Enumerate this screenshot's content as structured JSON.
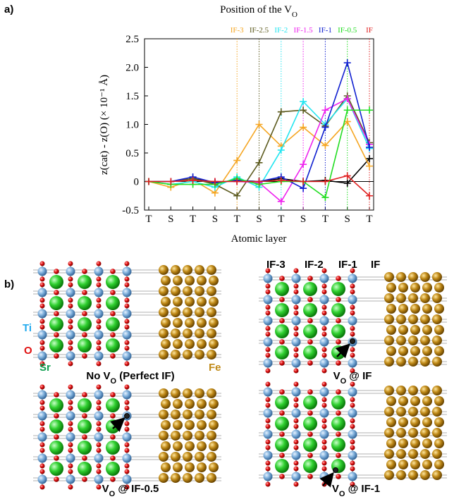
{
  "panel_a_label": "a)",
  "panel_b_label": "b)",
  "chart_data": {
    "type": "line",
    "title": "Position of the V",
    "title_subscript": "O",
    "y_label": "z(cat) - z(O) (× 10⁻¹ Å)",
    "x_label": "Atomic layer",
    "categories": [
      "T",
      "S",
      "T",
      "S",
      "T",
      "S",
      "T",
      "S",
      "T",
      "S",
      "T"
    ],
    "ylim": [
      -0.5,
      2.5
    ],
    "yticks": [
      2.5,
      {
        "value": 2,
        "label": "2.0"
      },
      1.5,
      {
        "value": 1,
        "label": "1.0"
      },
      0.5,
      0,
      -0.5
    ],
    "zero_line": true,
    "series": [
      {
        "color": "#000000",
        "values": [
          0,
          0,
          0.05,
          -0.02,
          0.02,
          0,
          0.05,
          0,
          0.02,
          -0.03,
          0.4
        ]
      },
      {
        "name": "IF-3",
        "color": "#f5a623",
        "vline": 4,
        "values": [
          0,
          -0.1,
          0.03,
          -0.2,
          0.37,
          1.0,
          0.62,
          0.95,
          0.63,
          1.05,
          0.27
        ]
      },
      {
        "name": "IF-2.5",
        "color": "#5c5a1e",
        "vline": 5,
        "values": [
          0,
          0,
          0.05,
          -0.05,
          -0.25,
          0.33,
          1.22,
          1.25,
          0.97,
          1.5,
          0.68
        ]
      },
      {
        "name": "IF-2",
        "color": "#22e5f0",
        "vline": 6,
        "values": [
          0,
          -0.05,
          0,
          -0.1,
          0.08,
          -0.1,
          0.55,
          1.4,
          1.0,
          1.45,
          0.58
        ]
      },
      {
        "name": "IF-1.5",
        "color": "#ee22ee",
        "vline": 7,
        "values": [
          0,
          0,
          0.02,
          0,
          0,
          -0.02,
          -0.35,
          0.3,
          1.25,
          1.45,
          0.65
        ]
      },
      {
        "name": "IF-1",
        "color": "#1020d0",
        "vline": 8,
        "values": [
          0,
          0,
          0.08,
          -0.02,
          0.02,
          0,
          0.08,
          -0.12,
          0.95,
          2.08,
          0.6
        ]
      },
      {
        "name": "IF-0.5",
        "color": "#22dd22",
        "vline": 9,
        "values": [
          0,
          -0.05,
          -0.05,
          -0.05,
          0.05,
          -0.05,
          0,
          0,
          -0.28,
          1.25,
          1.25
        ]
      },
      {
        "name": "IF",
        "color": "#e02020",
        "vline": 10,
        "values": [
          0,
          0,
          0.02,
          0,
          0,
          0,
          0.02,
          0,
          0,
          0.1,
          -0.25
        ]
      }
    ]
  },
  "ions": {
    "ti": "Ti",
    "o": "O",
    "sr": "Sr",
    "fe": "Fe"
  },
  "columns": [
    "IF-3",
    "IF-2",
    "IF-1",
    "IF"
  ],
  "captions": [
    {
      "pre": "No V",
      "sub": "O",
      "post": " (Perfect IF)"
    },
    {
      "pre": "V",
      "sub": "O",
      "post": " @ IF"
    },
    {
      "pre": "V",
      "sub": "O",
      "post": " @ IF-0.5"
    },
    {
      "pre": "V",
      "sub": "O",
      "post": " @ IF-1"
    }
  ]
}
